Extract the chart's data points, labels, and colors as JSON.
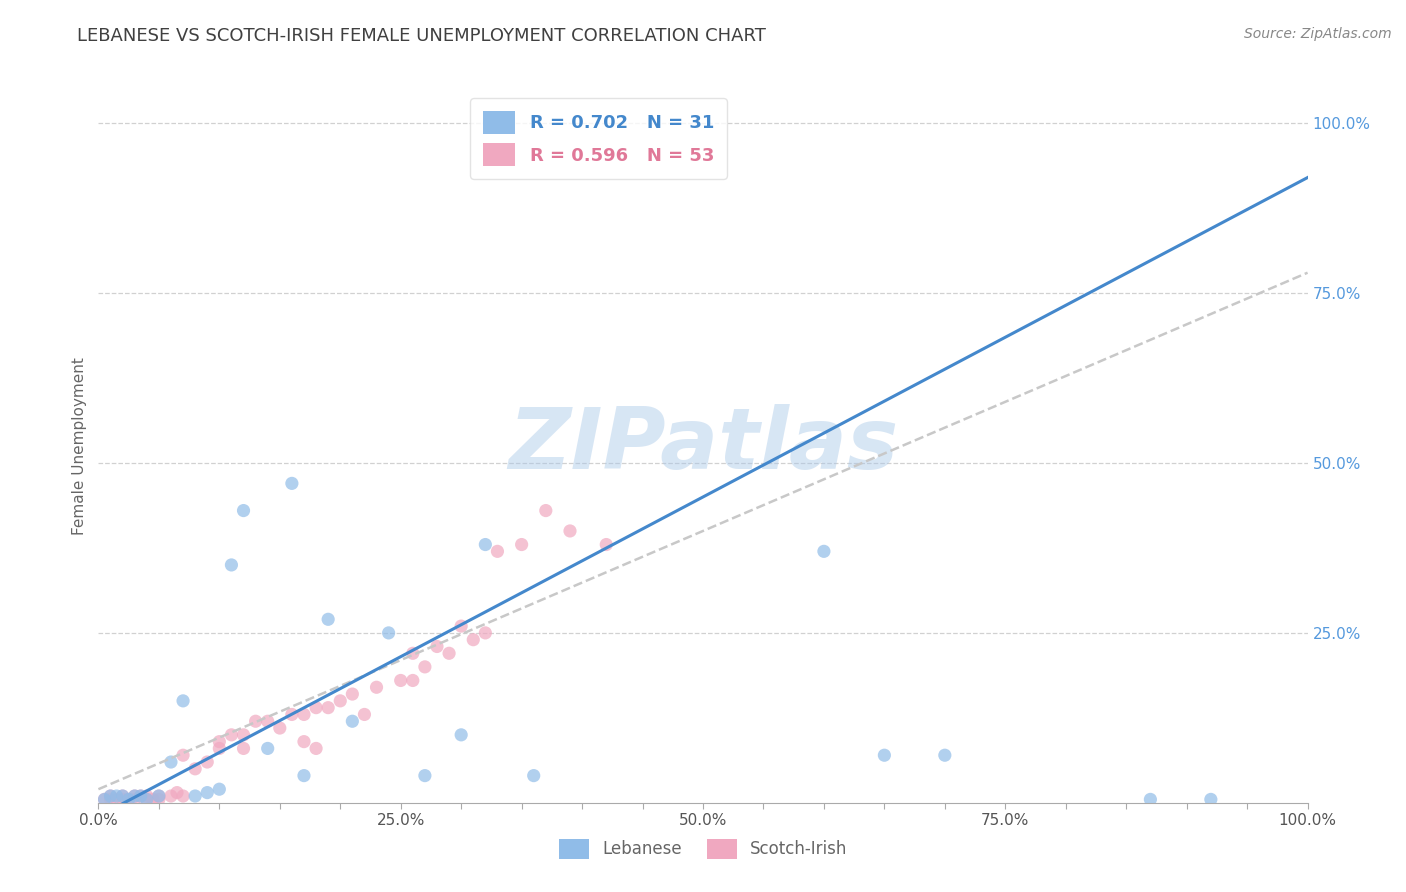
{
  "title": "LEBANESE VS SCOTCH-IRISH FEMALE UNEMPLOYMENT CORRELATION CHART",
  "source_text": "Source: ZipAtlas.com",
  "ylabel": "Female Unemployment",
  "xlim": [
    0,
    1
  ],
  "ylim": [
    0,
    1.05
  ],
  "xtick_labels": [
    "0.0%",
    "",
    "",
    "",
    "",
    "25.0%",
    "",
    "",
    "",
    "",
    "50.0%",
    "",
    "",
    "",
    "",
    "75.0%",
    "",
    "",
    "",
    "",
    "100.0%"
  ],
  "xtick_positions": [
    0.0,
    0.05,
    0.1,
    0.15,
    0.2,
    0.25,
    0.3,
    0.35,
    0.4,
    0.45,
    0.5,
    0.55,
    0.6,
    0.65,
    0.7,
    0.75,
    0.8,
    0.85,
    0.9,
    0.95,
    1.0
  ],
  "ytick_labels": [
    "25.0%",
    "50.0%",
    "75.0%",
    "100.0%"
  ],
  "ytick_positions": [
    0.25,
    0.5,
    0.75,
    1.0
  ],
  "watermark": "ZIPatlas",
  "watermark_color": "#a8c8e8",
  "title_color": "#404040",
  "title_fontsize": 13,
  "background_color": "#ffffff",
  "grid_color": "#cccccc",
  "blue_dot_color": "#90bce8",
  "pink_dot_color": "#f0a8c0",
  "blue_line_color": "#4488cc",
  "pink_line_color": "#e07898",
  "dashed_line_color": "#c8c8c8",
  "ytick_color": "#5599dd",
  "xtick_color": "#555555",
  "legend_r1": "R = 0.702",
  "legend_n1": "N = 31",
  "legend_r2": "R = 0.596",
  "legend_n2": "N = 53",
  "legend_color1": "#4488cc",
  "legend_color2": "#e07898",
  "blue_line_x0": 0.0,
  "blue_line_y0": -0.02,
  "blue_line_x1": 1.0,
  "blue_line_y1": 0.92,
  "pink_line_x0": 0.0,
  "pink_line_y0": 0.02,
  "pink_line_x1": 1.0,
  "pink_line_y1": 0.78,
  "lebanese_x": [
    0.005,
    0.01,
    0.015,
    0.02,
    0.025,
    0.03,
    0.035,
    0.04,
    0.05,
    0.06,
    0.07,
    0.08,
    0.09,
    0.1,
    0.11,
    0.12,
    0.14,
    0.16,
    0.17,
    0.19,
    0.21,
    0.24,
    0.27,
    0.3,
    0.32,
    0.36,
    0.6,
    0.65,
    0.7,
    0.87,
    0.92
  ],
  "lebanese_y": [
    0.005,
    0.01,
    0.01,
    0.01,
    0.005,
    0.01,
    0.01,
    0.005,
    0.01,
    0.06,
    0.15,
    0.01,
    0.015,
    0.02,
    0.35,
    0.43,
    0.08,
    0.47,
    0.04,
    0.27,
    0.12,
    0.25,
    0.04,
    0.1,
    0.38,
    0.04,
    0.37,
    0.07,
    0.07,
    0.005,
    0.005
  ],
  "scotchirish_x": [
    0.005,
    0.01,
    0.01,
    0.015,
    0.02,
    0.02,
    0.025,
    0.03,
    0.03,
    0.035,
    0.04,
    0.04,
    0.045,
    0.05,
    0.05,
    0.06,
    0.065,
    0.07,
    0.07,
    0.08,
    0.09,
    0.1,
    0.1,
    0.11,
    0.12,
    0.12,
    0.13,
    0.14,
    0.15,
    0.16,
    0.17,
    0.17,
    0.18,
    0.18,
    0.19,
    0.2,
    0.21,
    0.22,
    0.23,
    0.25,
    0.26,
    0.26,
    0.27,
    0.28,
    0.29,
    0.3,
    0.31,
    0.32,
    0.33,
    0.35,
    0.37,
    0.39,
    0.42
  ],
  "scotchirish_y": [
    0.005,
    0.005,
    0.01,
    0.005,
    0.005,
    0.01,
    0.005,
    0.01,
    0.005,
    0.01,
    0.005,
    0.01,
    0.005,
    0.005,
    0.01,
    0.01,
    0.015,
    0.01,
    0.07,
    0.05,
    0.06,
    0.08,
    0.09,
    0.1,
    0.1,
    0.08,
    0.12,
    0.12,
    0.11,
    0.13,
    0.13,
    0.09,
    0.14,
    0.08,
    0.14,
    0.15,
    0.16,
    0.13,
    0.17,
    0.18,
    0.18,
    0.22,
    0.2,
    0.23,
    0.22,
    0.26,
    0.24,
    0.25,
    0.37,
    0.38,
    0.43,
    0.4,
    0.38
  ]
}
